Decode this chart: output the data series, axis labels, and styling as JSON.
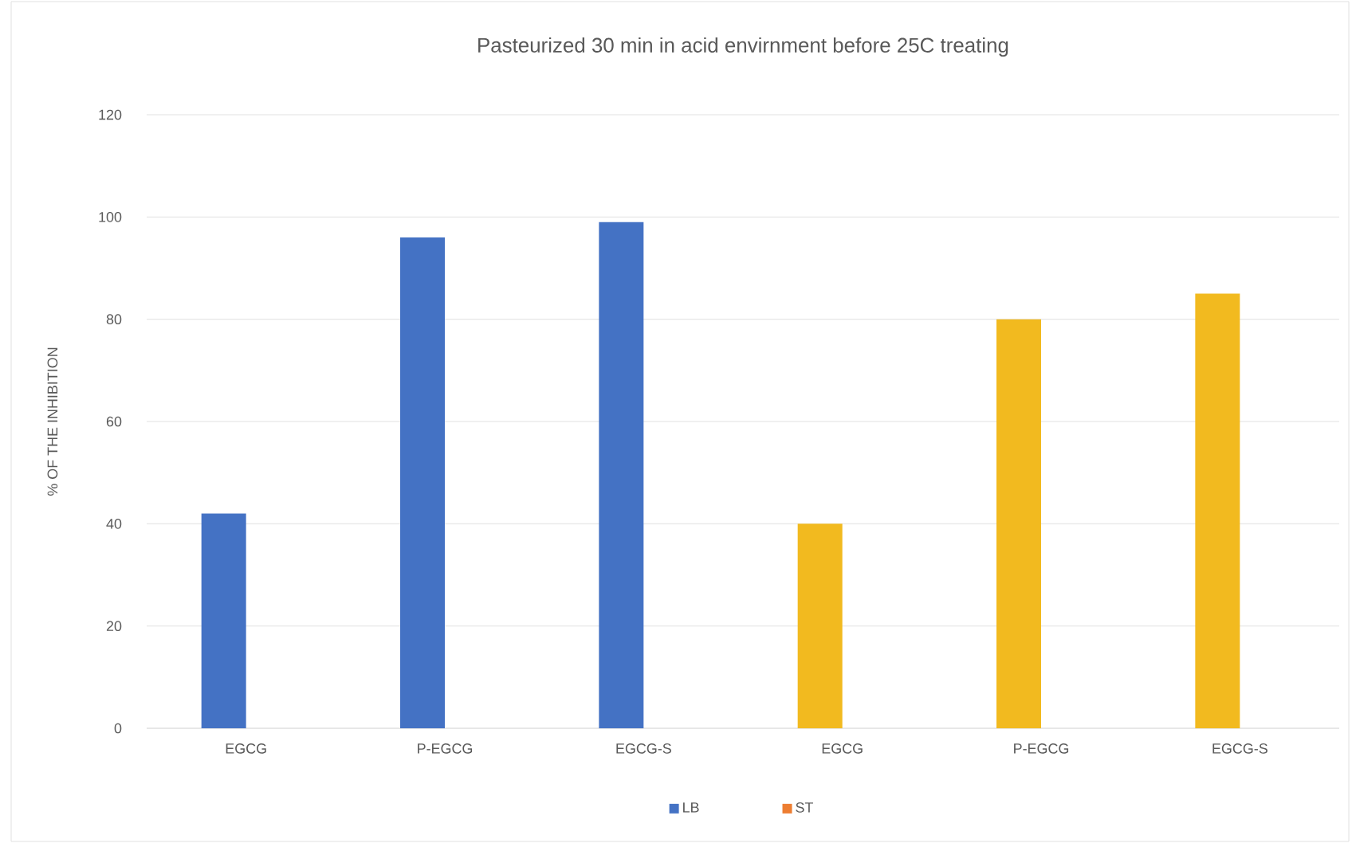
{
  "chart_data": {
    "type": "bar",
    "title": "Pasteurized 30 min in acid envirnment before 25C treating",
    "ylabel": "% OF THE INHIBITION",
    "categories": [
      "EGCG",
      "P-EGCG",
      "EGCG-S",
      "EGCG",
      "P-EGCG",
      "EGCG-S"
    ],
    "series": [
      {
        "name": "LB",
        "color": "#4472c4",
        "colors": [
          "#4472c4",
          "#4472c4",
          "#4472c4",
          "#f2ba1f",
          "#f2ba1f",
          "#f2ba1f"
        ],
        "values": [
          42,
          96,
          99,
          40,
          80,
          85
        ]
      },
      {
        "name": "ST",
        "color": "#ed7d31",
        "values": [
          null,
          null,
          null,
          null,
          null,
          null
        ]
      }
    ],
    "ylim": [
      0,
      120
    ],
    "yticks": [
      0,
      20,
      40,
      60,
      80,
      100,
      120
    ],
    "grid": "y",
    "legend": "bottom"
  }
}
